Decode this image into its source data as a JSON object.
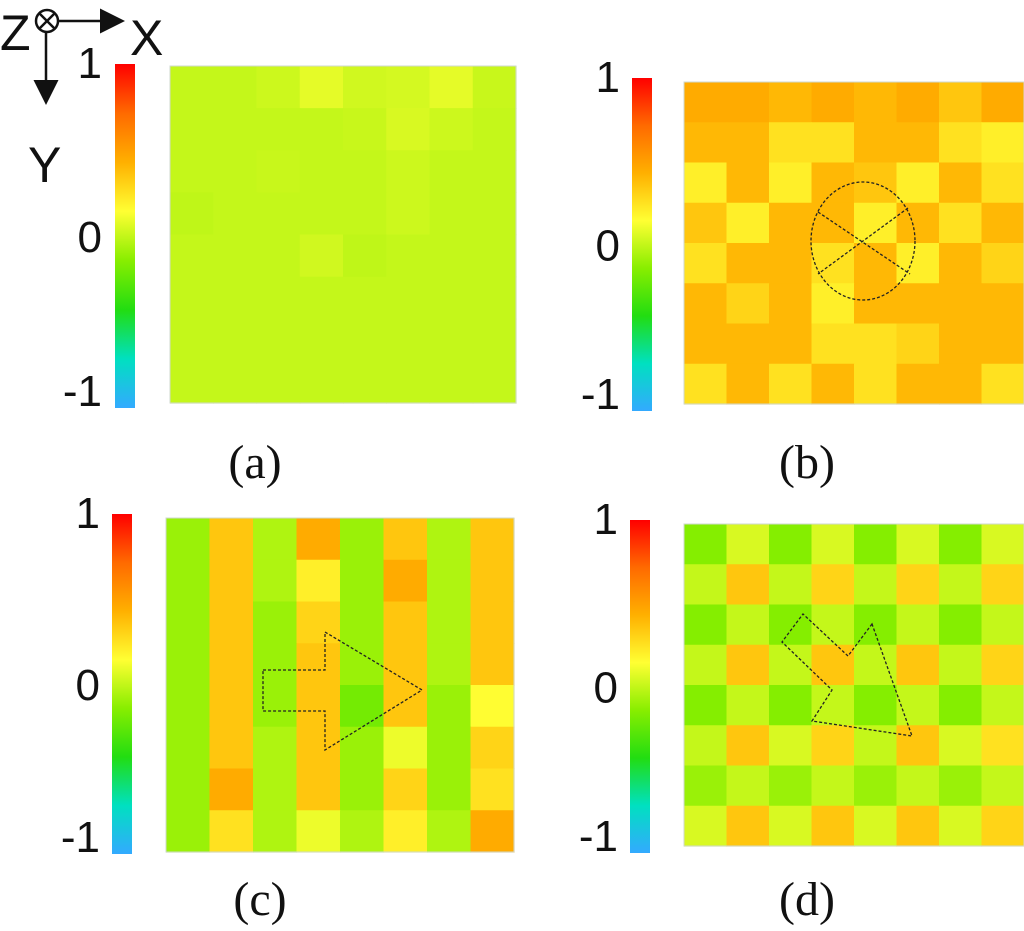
{
  "axes_indicator": {
    "z_label": "Z",
    "x_label": "X",
    "y_label": "Y"
  },
  "colorbar": {
    "ticks": [
      "1",
      "0",
      "-1"
    ],
    "stops": [
      "#ff0000",
      "#ff6a00",
      "#ffb000",
      "#ffff33",
      "#88ee00",
      "#22dd11",
      "#00e0c0",
      "#33aaff"
    ],
    "vmin": -1,
    "vmax": 1
  },
  "palette": {
    "a": "#dfff33",
    "b": "#f39a2c",
    "c": "#f3a22c",
    "d": "#d8f033"
  },
  "chart_data": [
    {
      "type": "heatmap",
      "caption": "(a)",
      "rows": 8,
      "cols": 8,
      "values": [
        [
          0.0,
          0.0,
          0.02,
          0.08,
          0.03,
          0.04,
          0.08,
          0.01
        ],
        [
          0.0,
          0.0,
          0.0,
          0.0,
          0.01,
          0.05,
          0.02,
          0.0
        ],
        [
          0.0,
          0.0,
          0.01,
          0.0,
          0.0,
          0.02,
          0.0,
          0.0
        ],
        [
          -0.01,
          0.0,
          0.0,
          0.0,
          0.0,
          0.02,
          0.0,
          0.0
        ],
        [
          0.0,
          0.0,
          0.0,
          0.03,
          -0.01,
          0.0,
          0.0,
          0.0
        ],
        [
          0.0,
          0.0,
          0.0,
          0.0,
          0.0,
          0.0,
          0.0,
          0.0
        ],
        [
          0.0,
          0.0,
          0.0,
          0.0,
          0.0,
          0.0,
          0.0,
          0.0
        ],
        [
          0.0,
          0.0,
          0.0,
          0.0,
          0.0,
          0.0,
          0.0,
          0.0
        ]
      ]
    },
    {
      "type": "heatmap",
      "caption": "(b)",
      "rows": 8,
      "cols": 8,
      "values": [
        [
          0.45,
          0.45,
          0.4,
          0.45,
          0.4,
          0.45,
          0.35,
          0.45
        ],
        [
          0.4,
          0.4,
          0.25,
          0.25,
          0.4,
          0.4,
          0.25,
          0.2
        ],
        [
          0.2,
          0.4,
          0.2,
          0.4,
          0.35,
          0.2,
          0.4,
          0.25
        ],
        [
          0.35,
          0.2,
          0.4,
          0.4,
          0.2,
          0.4,
          0.25,
          0.4
        ],
        [
          0.25,
          0.4,
          0.4,
          0.25,
          0.4,
          0.2,
          0.4,
          0.3
        ],
        [
          0.4,
          0.3,
          0.4,
          0.2,
          0.4,
          0.4,
          0.4,
          0.4
        ],
        [
          0.4,
          0.4,
          0.4,
          0.25,
          0.25,
          0.3,
          0.4,
          0.4
        ],
        [
          0.25,
          0.4,
          0.25,
          0.4,
          0.25,
          0.4,
          0.4,
          0.25
        ]
      ],
      "annotation": "circle-cross"
    },
    {
      "type": "heatmap",
      "caption": "(c)",
      "rows": 8,
      "cols": 8,
      "values": [
        [
          -0.1,
          0.35,
          -0.05,
          0.45,
          -0.1,
          0.35,
          -0.05,
          0.35
        ],
        [
          -0.1,
          0.35,
          -0.05,
          0.2,
          -0.1,
          0.45,
          -0.05,
          0.35
        ],
        [
          -0.1,
          0.35,
          -0.1,
          0.3,
          -0.1,
          0.35,
          -0.05,
          0.35
        ],
        [
          -0.1,
          0.35,
          -0.1,
          0.35,
          -0.1,
          0.35,
          -0.05,
          0.35
        ],
        [
          -0.1,
          0.35,
          -0.1,
          0.35,
          -0.2,
          0.35,
          -0.1,
          0.15
        ],
        [
          -0.1,
          0.35,
          -0.05,
          0.35,
          -0.1,
          0.1,
          -0.1,
          0.3
        ],
        [
          -0.1,
          0.45,
          -0.05,
          0.35,
          -0.1,
          0.3,
          -0.1,
          0.25
        ],
        [
          -0.1,
          0.25,
          -0.05,
          0.1,
          -0.05,
          0.2,
          -0.05,
          0.45
        ]
      ],
      "annotation": "arrow"
    },
    {
      "type": "heatmap",
      "caption": "(d)",
      "rows": 8,
      "cols": 8,
      "values": [
        [
          -0.15,
          0.05,
          -0.15,
          0.05,
          -0.15,
          0.05,
          -0.15,
          0.05
        ],
        [
          0.0,
          0.35,
          0.0,
          0.3,
          0.0,
          0.3,
          0.0,
          0.3
        ],
        [
          -0.15,
          0.0,
          -0.15,
          0.0,
          -0.15,
          0.0,
          -0.15,
          0.0
        ],
        [
          0.0,
          0.35,
          0.0,
          0.35,
          0.0,
          0.35,
          0.0,
          0.3
        ],
        [
          -0.15,
          0.0,
          -0.15,
          0.0,
          -0.15,
          0.0,
          -0.15,
          0.0
        ],
        [
          0.0,
          0.35,
          0.05,
          0.3,
          0.0,
          0.35,
          0.05,
          0.25
        ],
        [
          -0.1,
          0.0,
          -0.1,
          0.0,
          -0.1,
          0.0,
          -0.1,
          0.0
        ],
        [
          0.05,
          0.35,
          0.05,
          0.35,
          0.05,
          0.35,
          0.05,
          0.3
        ]
      ],
      "annotation": "triangle"
    }
  ]
}
